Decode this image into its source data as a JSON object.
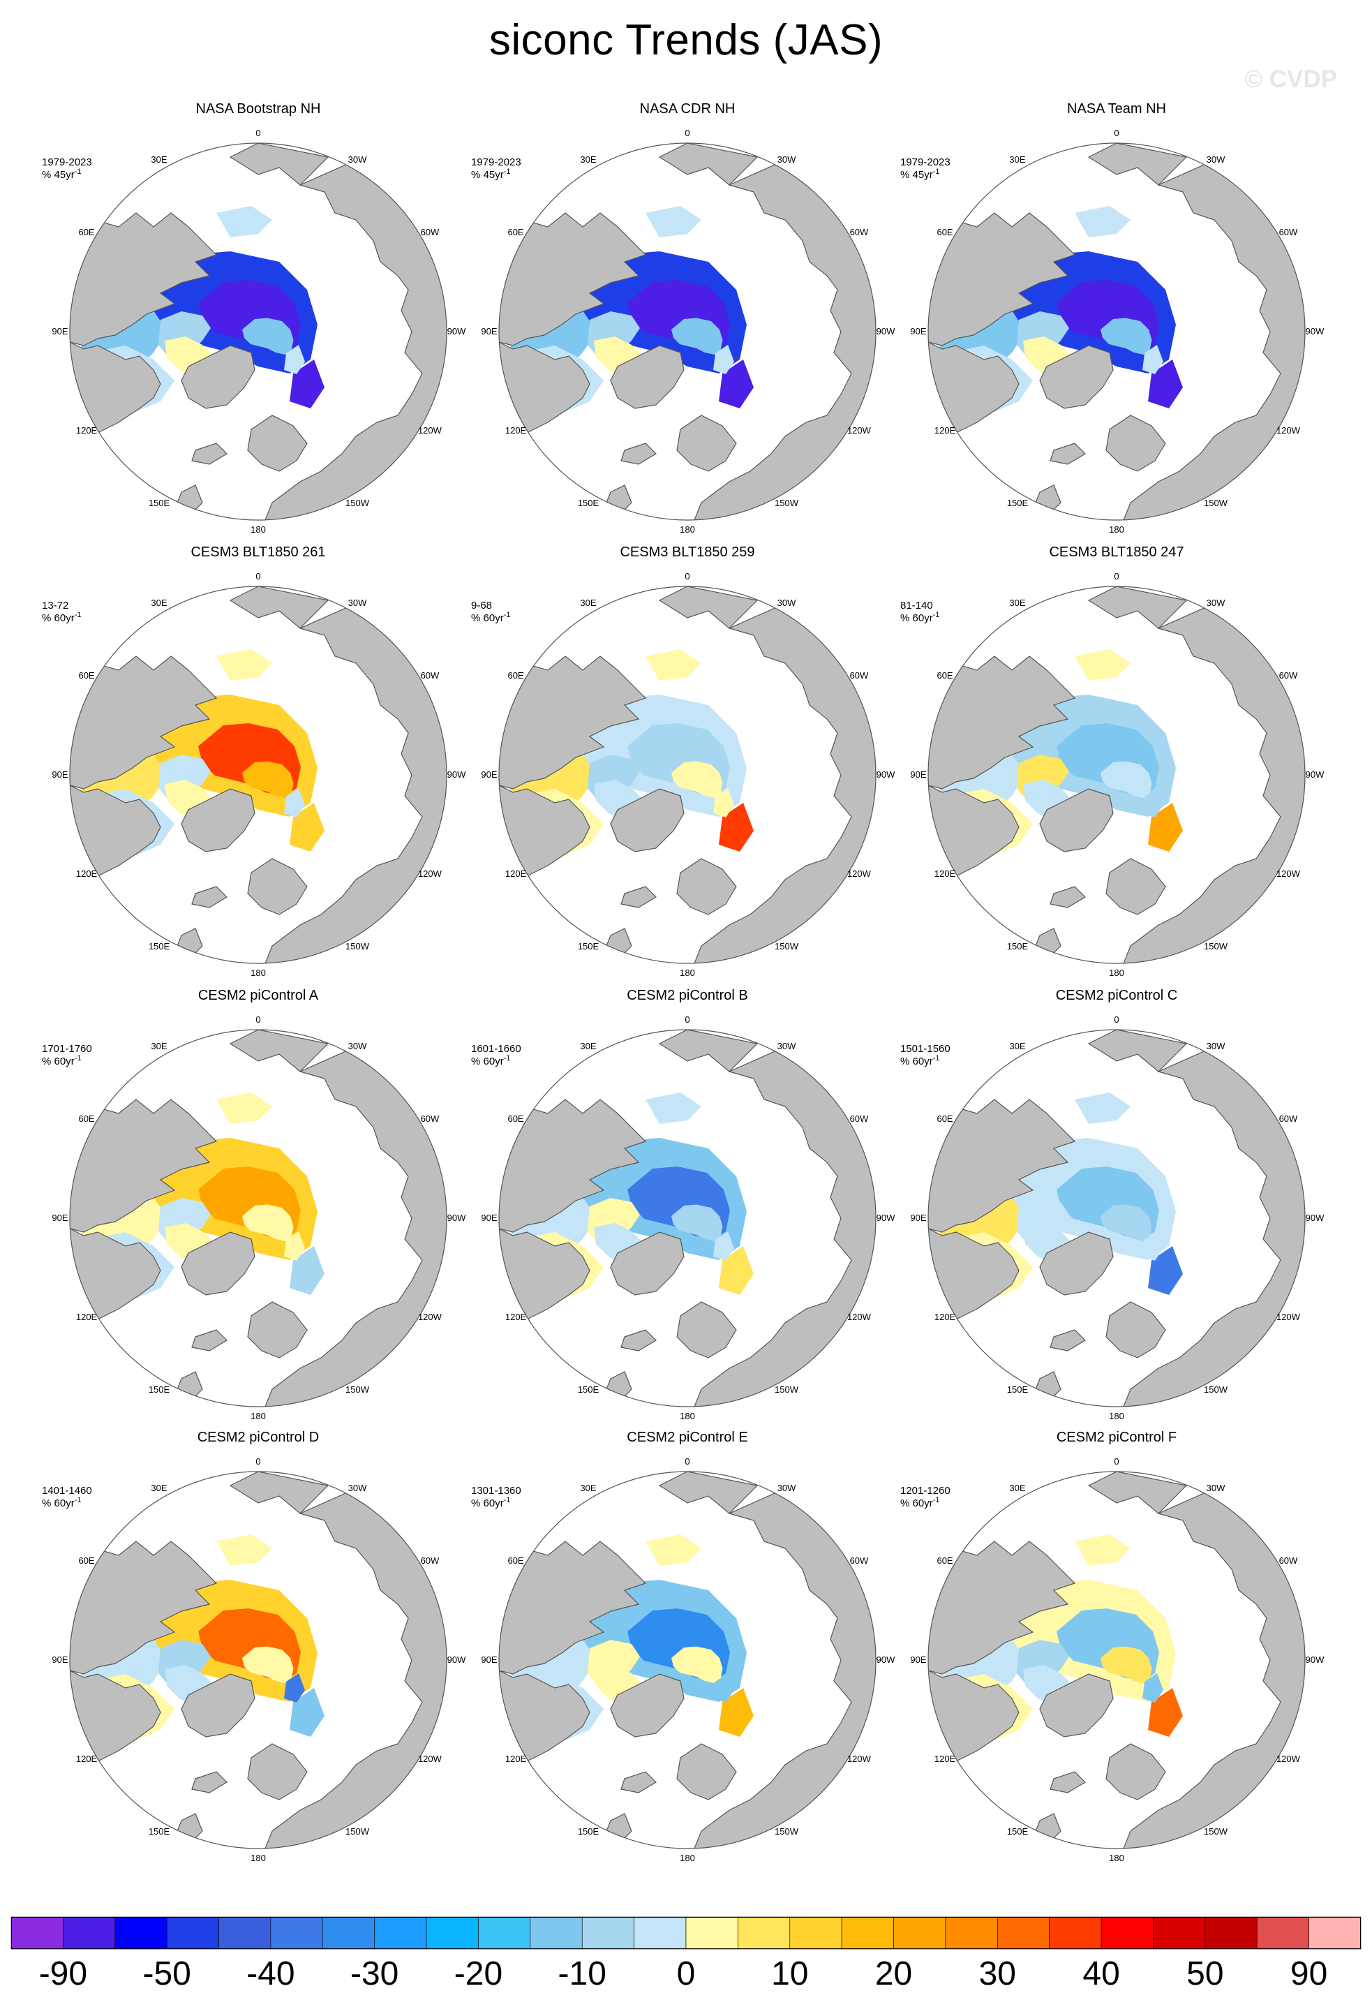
{
  "title": "siconc Trends (JAS)",
  "watermark": "© CVDP",
  "map": {
    "projection": "north polar stereographic",
    "longitude_labels": [
      "180",
      "150E",
      "120E",
      "90E",
      "60E",
      "30E",
      "0",
      "30W",
      "60W",
      "90W",
      "120W",
      "150W"
    ],
    "land_color": "#bebebe",
    "ocean_color": "#ffffff",
    "coast_color": "#555555"
  },
  "panels": [
    {
      "title": "NASA Bootstrap NH",
      "period": "1979-2023",
      "units_prefix": "% 45yr",
      "units_exp": "-1",
      "pattern": "obs"
    },
    {
      "title": "NASA CDR NH",
      "period": "1979-2023",
      "units_prefix": "% 45yr",
      "units_exp": "-1",
      "pattern": "obs"
    },
    {
      "title": "NASA Team NH",
      "period": "1979-2023",
      "units_prefix": "% 45yr",
      "units_exp": "-1",
      "pattern": "obs"
    },
    {
      "title": "CESM3 BLT1850 261",
      "period": "13-72",
      "units_prefix": "% 60yr",
      "units_exp": "-1",
      "pattern": "warm-strong"
    },
    {
      "title": "CESM3 BLT1850 259",
      "period": "9-68",
      "units_prefix": "% 60yr",
      "units_exp": "-1",
      "pattern": "mixed"
    },
    {
      "title": "CESM3 BLT1850 247",
      "period": "81-140",
      "units_prefix": "% 60yr",
      "units_exp": "-1",
      "pattern": "mixed-cool"
    },
    {
      "title": "CESM2 piControl A",
      "period": "1701-1760",
      "units_prefix": "% 60yr",
      "units_exp": "-1",
      "pattern": "warm"
    },
    {
      "title": "CESM2 piControl B",
      "period": "1601-1660",
      "units_prefix": "% 60yr",
      "units_exp": "-1",
      "pattern": "cool"
    },
    {
      "title": "CESM2 piControl C",
      "period": "1501-1560",
      "units_prefix": "% 60yr",
      "units_exp": "-1",
      "pattern": "cool-light"
    },
    {
      "title": "CESM2 piControl D",
      "period": "1401-1460",
      "units_prefix": "% 60yr",
      "units_exp": "-1",
      "pattern": "warm-d"
    },
    {
      "title": "CESM2 piControl E",
      "period": "1301-1360",
      "units_prefix": "% 60yr",
      "units_exp": "-1",
      "pattern": "cool-e"
    },
    {
      "title": "CESM2 piControl F",
      "period": "1201-1260",
      "units_prefix": "% 60yr",
      "units_exp": "-1",
      "pattern": "mixed-f"
    }
  ],
  "colorbar": {
    "colors": [
      "#8a2be2",
      "#4b1fe6",
      "#0000ff",
      "#1e3fe8",
      "#3a5fdc",
      "#3d7ae8",
      "#2f8df0",
      "#1e9cff",
      "#0ab4ff",
      "#3cc3f5",
      "#7ec8f0",
      "#a6d6f0",
      "#c4e5f7",
      "#fff9a8",
      "#ffe55c",
      "#ffd22e",
      "#ffbb0a",
      "#ffa500",
      "#ff8c00",
      "#ff6a00",
      "#ff3c00",
      "#ff0000",
      "#d90000",
      "#c20000",
      "#e05050",
      "#ffb3b3"
    ],
    "labels": [
      "-90",
      "-50",
      "-40",
      "-30",
      "-20",
      "-10",
      "0",
      "10",
      "20",
      "30",
      "40",
      "50",
      "90"
    ]
  }
}
